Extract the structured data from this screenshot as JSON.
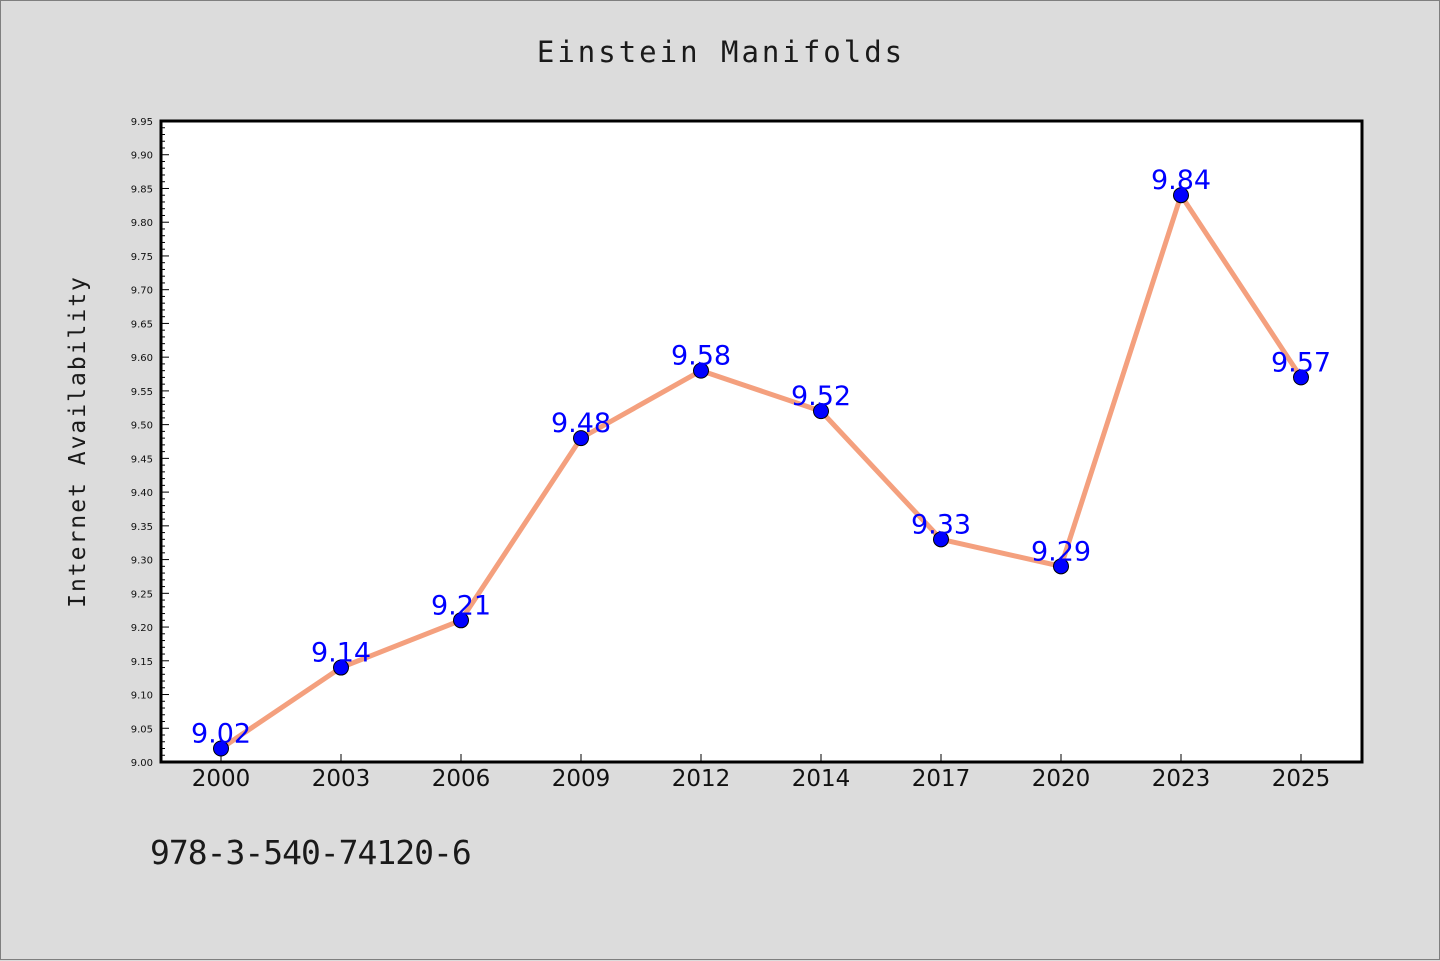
{
  "chart_data": {
    "type": "line",
    "title": "Einstein Manifolds",
    "xlabel": "",
    "ylabel": "Internet Availability",
    "categories": [
      "2000",
      "2003",
      "2006",
      "2009",
      "2012",
      "2014",
      "2017",
      "2020",
      "2023",
      "2025"
    ],
    "series": [
      {
        "values": [
          9.02,
          9.14,
          9.21,
          9.48,
          9.58,
          9.52,
          9.33,
          9.29,
          9.84,
          9.57
        ],
        "labels": [
          "9.02",
          "9.14",
          "9.21",
          "9.48",
          "9.58",
          "9.52",
          "9.33",
          "9.29",
          "9.84",
          "9.57"
        ],
        "line_color": "#f4a07e",
        "marker_color": "#0000ff",
        "label_color": "#0000ff"
      }
    ],
    "ylim": [
      9.0,
      9.95
    ],
    "yticks": [
      "9.00",
      "9.05",
      "9.10",
      "9.15",
      "9.20",
      "9.25",
      "9.30",
      "9.35",
      "9.40",
      "9.45",
      "9.50",
      "9.55",
      "9.60",
      "9.65",
      "9.70",
      "9.75",
      "9.80",
      "9.85",
      "9.90",
      "9.95"
    ],
    "grid": false,
    "legend": "none"
  },
  "footer_text": "978-3-540-74120-6",
  "colors": {
    "background": "#dcdcdc",
    "plot_background": "#ffffff",
    "axis": "#000000"
  }
}
